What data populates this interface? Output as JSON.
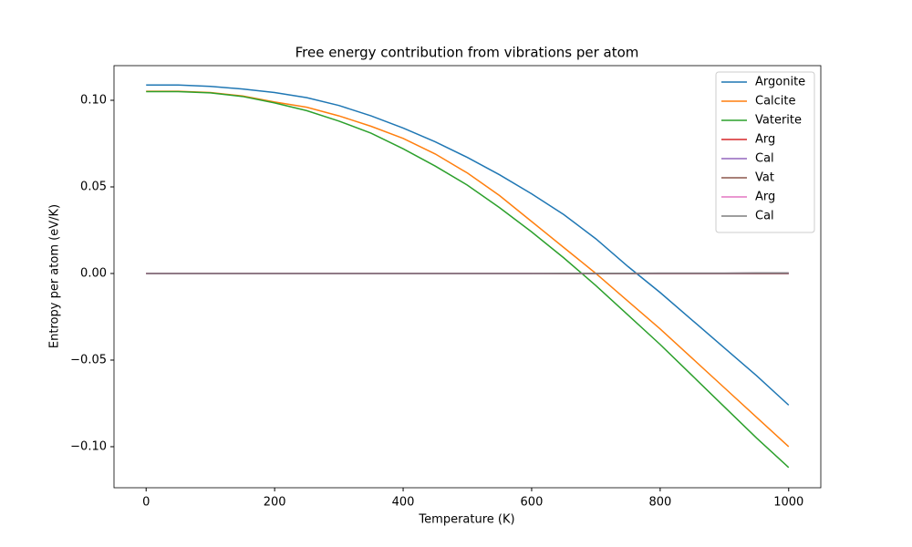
{
  "chart_data": {
    "type": "line",
    "title": "Free energy contribution from vibrations per atom",
    "xlabel": "Temperature (K)",
    "ylabel": "Entropy per atom (eV/K)",
    "x": [
      0,
      50,
      100,
      150,
      200,
      250,
      300,
      350,
      400,
      450,
      500,
      550,
      600,
      650,
      700,
      750,
      800,
      850,
      900,
      950,
      1000
    ],
    "series": [
      {
        "name": "Argonite",
        "color": "#1f77b4",
        "values": [
          0.1088,
          0.1088,
          0.108,
          0.1065,
          0.1045,
          0.1015,
          0.097,
          0.091,
          0.084,
          0.076,
          0.067,
          0.057,
          0.046,
          0.034,
          0.02,
          0.004,
          -0.011,
          -0.027,
          -0.043,
          -0.059,
          -0.076
        ]
      },
      {
        "name": "Calcite",
        "color": "#ff7f0e",
        "values": [
          0.1052,
          0.1052,
          0.1045,
          0.1025,
          0.099,
          0.096,
          0.091,
          0.085,
          0.078,
          0.069,
          0.058,
          0.045,
          0.03,
          0.015,
          0.0,
          -0.016,
          -0.032,
          -0.049,
          -0.066,
          -0.083,
          -0.1
        ]
      },
      {
        "name": "Vaterite",
        "color": "#2ca02c",
        "values": [
          0.105,
          0.105,
          0.1043,
          0.1022,
          0.0985,
          0.094,
          0.088,
          0.081,
          0.072,
          0.062,
          0.051,
          0.038,
          0.024,
          0.009,
          -0.007,
          -0.024,
          -0.041,
          -0.059,
          -0.077,
          -0.095,
          -0.112
        ]
      },
      {
        "name": "Arg",
        "color": "#d62728",
        "values": [
          0,
          0,
          0,
          0,
          0,
          0,
          0,
          0,
          0,
          0,
          0,
          0,
          0,
          0,
          0,
          0,
          0,
          0,
          0,
          0,
          0
        ]
      },
      {
        "name": "Cal",
        "color": "#9467bd",
        "values": [
          0,
          0,
          0,
          0,
          0,
          0,
          0,
          0,
          0,
          0,
          0,
          0,
          0,
          0,
          0,
          0,
          0,
          0,
          0,
          0,
          0
        ]
      },
      {
        "name": "Vat",
        "color": "#8c564b",
        "values": [
          0,
          0,
          0,
          0,
          0,
          0,
          0,
          0,
          0,
          0,
          0,
          0,
          0,
          0,
          0,
          0,
          0,
          0,
          0,
          0,
          0
        ]
      },
      {
        "name": "Arg",
        "color": "#e377c2",
        "values": [
          0,
          0,
          0,
          0,
          0,
          0,
          0,
          0,
          0,
          0,
          0,
          0,
          0,
          0.0001,
          0.0001,
          0.0001,
          0.0002,
          0.0002,
          0.0002,
          0.0003,
          0.0003
        ]
      },
      {
        "name": "Cal",
        "color": "#7f7f7f",
        "values": [
          0,
          0,
          0,
          0,
          0,
          0,
          0,
          0,
          0,
          0,
          0,
          0,
          0,
          0.0001,
          0.0001,
          0.0001,
          0.0002,
          0.0002,
          0.0002,
          0.0003,
          0.0003
        ]
      }
    ],
    "xlim": [
      -50,
      1050
    ],
    "ylim": [
      -0.1237,
      0.12
    ],
    "xticks": [
      0,
      200,
      400,
      600,
      800,
      1000
    ],
    "yticks": [
      {
        "value": -0.1,
        "label": "−0.10"
      },
      {
        "value": -0.05,
        "label": "−0.05"
      },
      {
        "value": 0,
        "label": "0.00"
      },
      {
        "value": 0.05,
        "label": "0.05"
      },
      {
        "value": 0.1,
        "label": "0.10"
      }
    ],
    "legend": "upper right",
    "grid": false
  }
}
